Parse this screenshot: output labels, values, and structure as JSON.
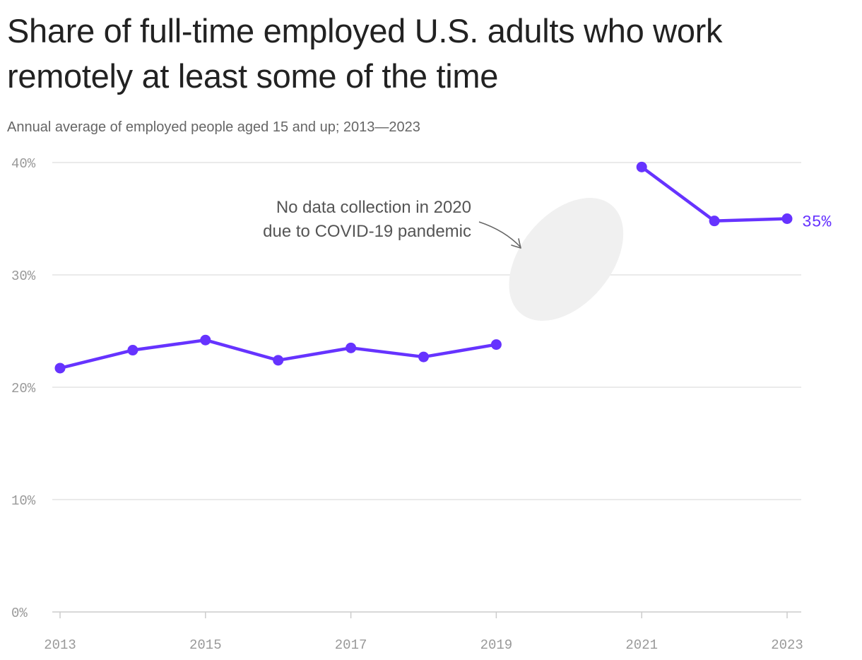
{
  "header": {
    "title": "Share of full-time employed U.S. adults who work remotely at least some of the time",
    "subtitle": "Annual average of employed people aged 15 and up; 2013—2023"
  },
  "chart_data": {
    "type": "line",
    "title": "Share of full-time employed U.S. adults who work remotely at least some of the time",
    "subtitle": "Annual average of employed people aged 15 and up; 2013—2023",
    "xlabel": "",
    "ylabel": "",
    "ylim": [
      0,
      40
    ],
    "xlim": [
      2013,
      2023
    ],
    "y_ticks": [
      0,
      10,
      20,
      30,
      40
    ],
    "y_tick_labels": [
      "0%",
      "10%",
      "20%",
      "30%",
      "40%"
    ],
    "x_ticks": [
      2013,
      2015,
      2017,
      2019,
      2021,
      2023
    ],
    "x_tick_labels": [
      "2013",
      "2015",
      "2017",
      "2019",
      "2021",
      "2023"
    ],
    "grid": true,
    "legend": "none",
    "series": [
      {
        "color": "#6633ff",
        "segments": [
          {
            "x": [
              2013,
              2014,
              2015,
              2016,
              2017,
              2018,
              2019
            ],
            "y": [
              21.7,
              23.3,
              24.2,
              22.4,
              23.5,
              22.7,
              23.8
            ]
          },
          {
            "x": [
              2021,
              2022,
              2023
            ],
            "y": [
              39.6,
              34.8,
              35.0
            ]
          }
        ]
      }
    ],
    "end_label": {
      "text": "35%",
      "x": 2023,
      "y": 35.0
    },
    "annotation": {
      "lines": [
        "No data collection in 2020",
        "due to COVID-19 pandemic"
      ],
      "x": 2020
    },
    "colors": {
      "series": "#6633ff",
      "gap_shade": "#f0f0f0",
      "annotation_arrow": "#666666"
    }
  }
}
